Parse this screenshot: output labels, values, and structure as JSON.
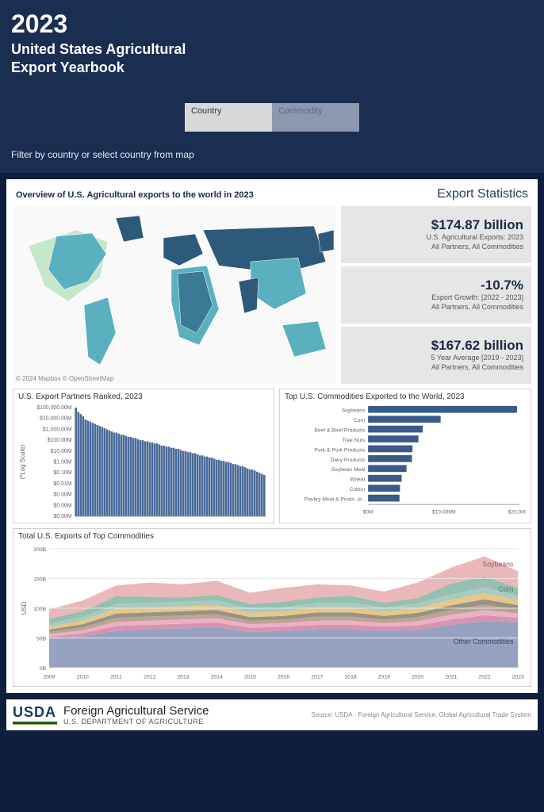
{
  "header": {
    "year": "2023",
    "title_line1": "United States Agricultural",
    "title_line2": "Export Yearbook",
    "tabs": {
      "country": "Country",
      "commodity": "Commodity"
    },
    "filter_hint": "Filter by country or select country from map"
  },
  "overview": {
    "title": "Overview of U.S. Agricultural exports to the world in 2023",
    "stats_title": "Export Statistics",
    "map_attribution": "© 2024 Mapbox © OpenStreetMap",
    "map": {
      "ocean_color": "#f9f9f9",
      "land_colors": [
        "#2d5a7a",
        "#5ab0bf",
        "#a7d5b8",
        "#c5e8cc",
        "#3a7a94"
      ]
    },
    "stats": [
      {
        "value": "$174.87 billion",
        "label1": "U.S. Agricultural Exports:  2023",
        "label2": "All Partners, All Commodities"
      },
      {
        "value": "-10.7%",
        "label1": "Export Growth: [2022 - 2023]",
        "label2": "All Partners, All Commodities"
      },
      {
        "value": "$167.62 billion",
        "label1": "5 Year Average [2019 - 2023]",
        "label2": "All Partners, All Commodities"
      }
    ]
  },
  "partners_chart": {
    "title": "U.S. Export Partners Ranked, 2023",
    "type": "bar",
    "ylabel": "(*Log Scale)",
    "y_ticks": [
      "$100,000.00M",
      "$10,000.00M",
      "$1,000.00M",
      "$100.00M",
      "$10.00M",
      "$1.00M",
      "$0.10M",
      "$0.01M",
      "$0.00M",
      "$0.00M",
      "$0.00M"
    ],
    "bar_color": "#4a6a9a",
    "values": [
      10,
      9.6,
      9.4,
      9.2,
      8.9,
      8.8,
      8.7,
      8.6,
      8.5,
      8.4,
      8.3,
      8.2,
      8.1,
      8.0,
      7.9,
      7.8,
      7.7,
      7.7,
      7.6,
      7.5,
      7.5,
      7.4,
      7.3,
      7.3,
      7.2,
      7.2,
      7.1,
      7.0,
      7.0,
      6.9,
      6.9,
      6.8,
      6.8,
      6.7,
      6.7,
      6.6,
      6.5,
      6.5,
      6.4,
      6.4,
      6.3,
      6.3,
      6.2,
      6.2,
      6.1,
      6.0,
      6.0,
      5.9,
      5.9,
      5.8,
      5.8,
      5.7,
      5.6,
      5.6,
      5.5,
      5.5,
      5.4,
      5.4,
      5.3,
      5.2,
      5.2,
      5.1,
      5.1,
      5.0,
      5.0,
      4.9,
      4.8,
      4.8,
      4.7,
      4.6,
      4.6,
      4.5,
      4.4,
      4.3,
      4.3,
      4.2,
      4.1,
      4.0,
      3.9,
      3.8
    ]
  },
  "commodities_chart": {
    "title": "Top U.S. Commodities Exported to the World, 2023",
    "type": "bar_horizontal",
    "x_ticks": [
      "$0M",
      "$10,000M",
      "$20,000M"
    ],
    "bar_color": "#3a5a8a",
    "categories": [
      "Soybeans",
      "Corn",
      "Beef & Beef Products",
      "Tree Nuts",
      "Pork & Pork Products",
      "Dairy Products",
      "Soybean Meal",
      "Wheat",
      "Cotton",
      "Poultry Meat & Prods. (e.."
    ],
    "values": [
      27500,
      13400,
      10100,
      9300,
      8200,
      8100,
      7100,
      6200,
      5900,
      5800
    ]
  },
  "area_chart": {
    "title": "Total U.S. Exports of Top Commodities",
    "type": "stacked_area",
    "ylabel": "USD",
    "y_ticks": [
      "0B",
      "50B",
      "100B",
      "150B",
      "200B"
    ],
    "x_ticks": [
      "2009",
      "2010",
      "2011",
      "2012",
      "2013",
      "2014",
      "2015",
      "2016",
      "2017",
      "2018",
      "2019",
      "2020",
      "2021",
      "2022",
      "2023"
    ],
    "series": [
      {
        "name": "Other Commodities",
        "color": "#8b98b8",
        "values": [
          48,
          52,
          62,
          64,
          66,
          68,
          60,
          62,
          64,
          64,
          62,
          64,
          72,
          78,
          76
        ]
      },
      {
        "name": "",
        "color": "#d088a8",
        "values": [
          4,
          6,
          8,
          8,
          8,
          8,
          7,
          7,
          8,
          8,
          7,
          7,
          9,
          10,
          8
        ]
      },
      {
        "name": "",
        "color": "#e8a8c0",
        "values": [
          4,
          5,
          7,
          7,
          7,
          7,
          6,
          6,
          7,
          7,
          6,
          7,
          8,
          9,
          7
        ]
      },
      {
        "name": "",
        "color": "#b89888",
        "values": [
          4,
          5,
          7,
          7,
          7,
          7,
          6,
          6,
          7,
          7,
          6,
          7,
          8,
          9,
          7
        ]
      },
      {
        "name": "",
        "color": "#888878",
        "values": [
          4,
          5,
          7,
          7,
          7,
          7,
          6,
          6,
          7,
          7,
          6,
          7,
          8,
          9,
          7
        ]
      },
      {
        "name": "",
        "color": "#e8c078",
        "values": [
          5,
          6,
          8,
          8,
          8,
          8,
          7,
          7,
          8,
          8,
          7,
          8,
          9,
          10,
          8
        ]
      },
      {
        "name": "",
        "color": "#9ec5b8",
        "values": [
          5,
          6,
          8,
          8,
          8,
          8,
          7,
          7,
          8,
          8,
          7,
          8,
          9,
          10,
          8
        ]
      },
      {
        "name": "Corn",
        "color": "#88b8a8",
        "values": [
          8,
          10,
          13,
          10,
          7,
          9,
          8,
          10,
          9,
          12,
          8,
          9,
          18,
          18,
          13
        ]
      },
      {
        "name": "Soybeans",
        "color": "#e8b0b0",
        "values": [
          16,
          18,
          18,
          24,
          22,
          24,
          19,
          23,
          22,
          17,
          19,
          26,
          27,
          34,
          28
        ]
      }
    ],
    "label_soybeans": "Soybeans",
    "label_corn": "Corn",
    "label_other": "Other Commodities"
  },
  "footer": {
    "usda": "USDA",
    "fas": "Foreign Agricultural Service",
    "dept": "U.S. DEPARTMENT OF AGRICULTURE",
    "source": "Source: USDA - Foreign Agricultural Service, Global Agricultural Trade System"
  },
  "colors": {
    "header_bg": "#1a2e52",
    "page_bg": "#0f1e3d",
    "panel_border": "#d0d0d0",
    "stat_bg": "#e6e6e6"
  }
}
